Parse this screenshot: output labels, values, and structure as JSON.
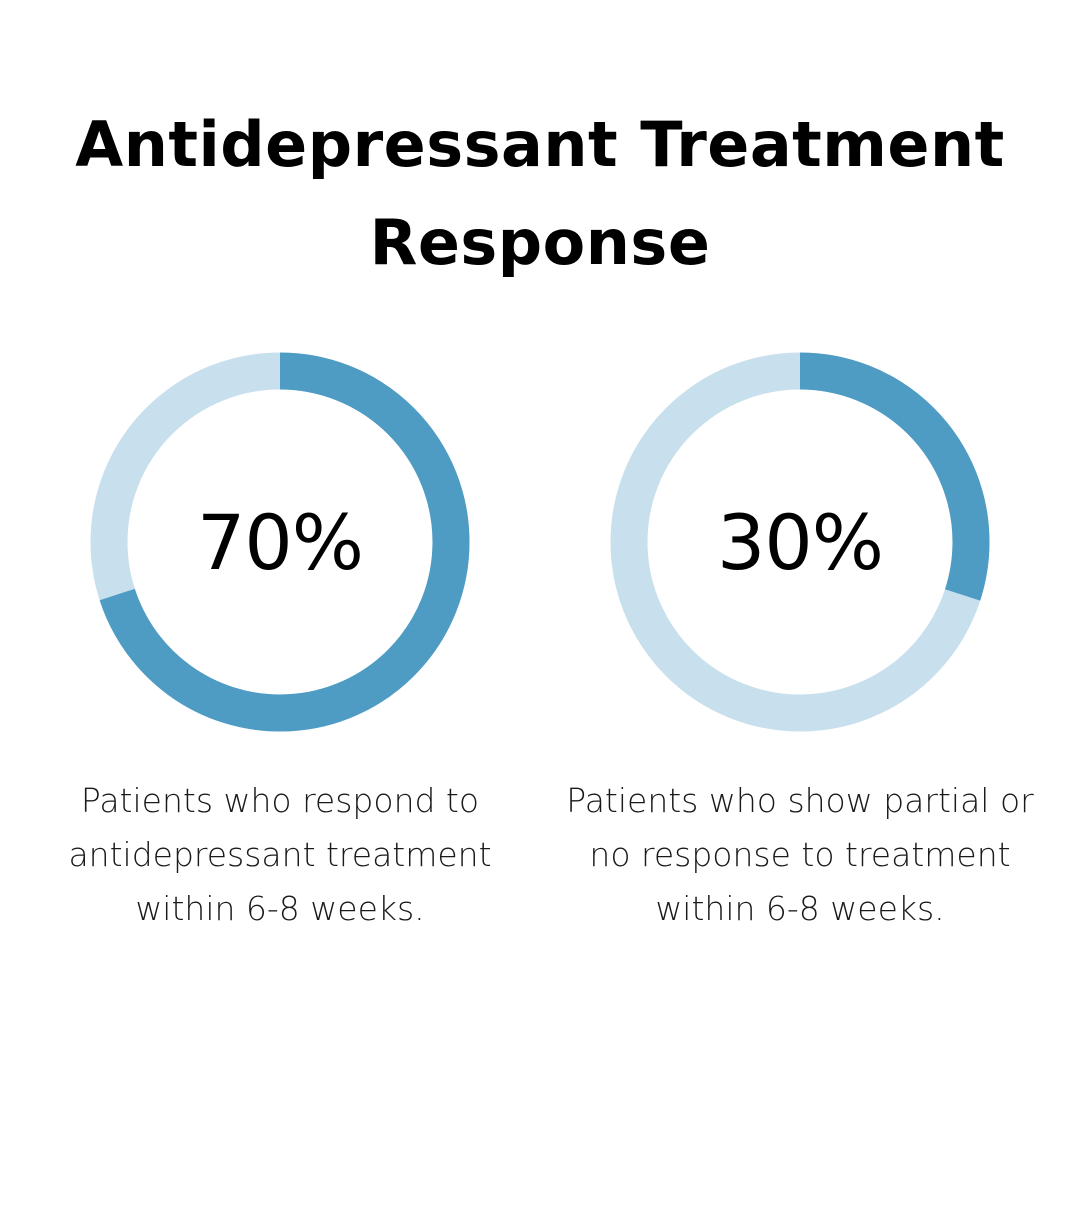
{
  "title_line1": "Antidepressant Treatment",
  "title_line2": "Response",
  "colors": {
    "filled": "#4e9bc3",
    "track": "#c8e0ed"
  },
  "chart_data": [
    {
      "type": "pie",
      "values": [
        70,
        30
      ],
      "value_label": "70%",
      "description": "Patients who respond to antidepressant treatment within 6-8 weeks."
    },
    {
      "type": "pie",
      "values": [
        30,
        70
      ],
      "value_label": "30%",
      "description": "Patients who show partial or no response to treatment within 6-8 weeks."
    }
  ]
}
